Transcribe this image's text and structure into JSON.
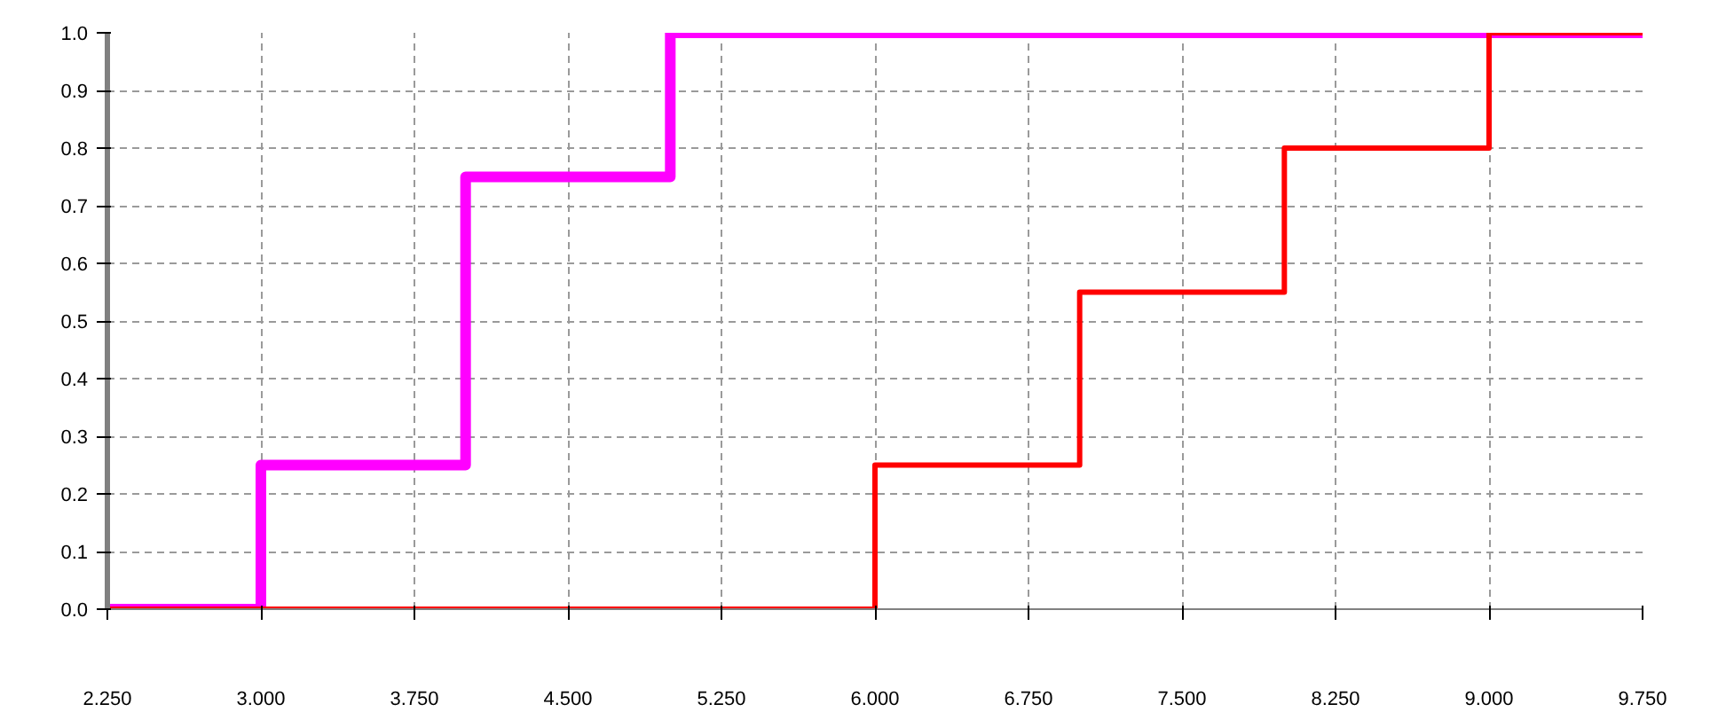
{
  "chart_data": {
    "type": "step",
    "series": [
      {
        "color": "#ff00ff",
        "x": [
          2.25,
          3.0,
          4.0,
          5.0,
          9.75
        ],
        "values": [
          0,
          0.25,
          0.75,
          1.0,
          1.0
        ]
      },
      {
        "color": "#ff0000",
        "x": [
          2.25,
          6.0,
          7.0,
          8.0,
          9.0,
          9.75
        ],
        "values": [
          0,
          0.25,
          0.55,
          0.8,
          1.0,
          1.0
        ]
      }
    ],
    "xlim": [
      2.25,
      9.75
    ],
    "xticks": [
      {
        "value": 2.25,
        "label": "2.250"
      },
      {
        "value": 3.0,
        "label": "3.000"
      },
      {
        "value": 3.75,
        "label": "3.750"
      },
      {
        "value": 4.5,
        "label": "4.500"
      },
      {
        "value": 5.25,
        "label": "5.250"
      },
      {
        "value": 6.0,
        "label": "6.000"
      },
      {
        "value": 6.75,
        "label": "6.750"
      },
      {
        "value": 7.5,
        "label": "7.500"
      },
      {
        "value": 8.25,
        "label": "8.250"
      },
      {
        "value": 9.0,
        "label": "9.000"
      },
      {
        "value": 9.75,
        "label": "9.750"
      }
    ],
    "ylim": [
      0,
      1
    ],
    "yticks": [
      {
        "value": 0,
        "label": "0.0"
      },
      {
        "value": 0.1,
        "label": "0.1"
      },
      {
        "value": 0.2,
        "label": "0.2"
      },
      {
        "value": 0.3,
        "label": "0.3"
      },
      {
        "value": 0.4,
        "label": "0.4"
      },
      {
        "value": 0.5,
        "label": "0.5"
      },
      {
        "value": 0.6,
        "label": "0.6"
      },
      {
        "value": 0.7,
        "label": "0.7"
      },
      {
        "value": 0.8,
        "label": "0.8"
      },
      {
        "value": 0.9,
        "label": "0.9"
      },
      {
        "value": 1,
        "label": "1.0"
      }
    ],
    "grid": true,
    "marker": "none",
    "line_style": "solid"
  }
}
